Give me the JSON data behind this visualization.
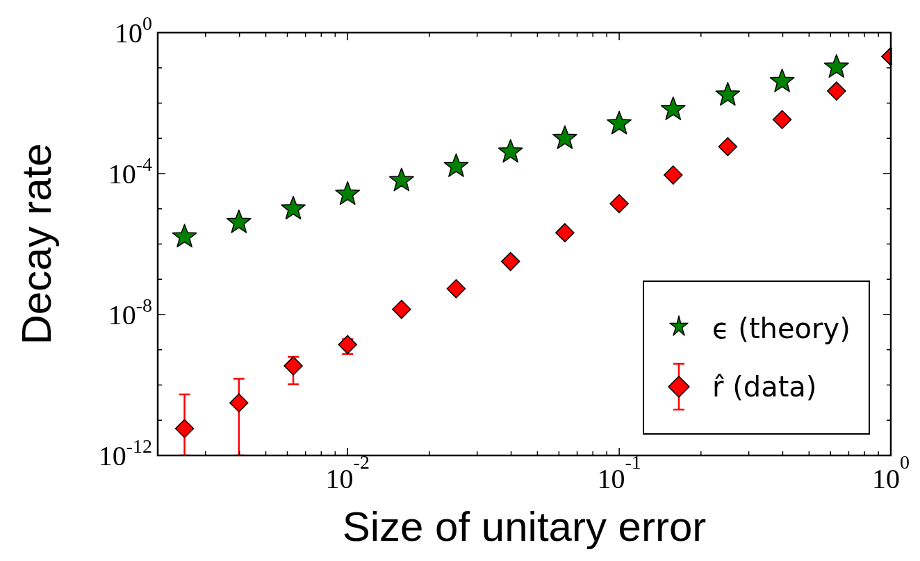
{
  "chart_data": {
    "type": "scatter",
    "xlabel": "Size of unitary error",
    "ylabel": "Decay rate",
    "log": "xy",
    "grid": false,
    "legend": "bottom right",
    "x": [
      0.00251,
      0.00398,
      0.00631,
      0.01,
      0.0158,
      0.0251,
      0.0398,
      0.0631,
      0.1,
      0.158,
      0.251,
      0.398,
      0.631,
      1
    ],
    "series": [
      {
        "name": "ϵ (theory)",
        "color": "#008000",
        "marker": "star",
        "values": [
          1.6e-06,
          4.1e-06,
          1e-05,
          2.6e-05,
          6.3e-05,
          0.00016,
          0.00041,
          0.001,
          0.0026,
          0.0066,
          0.017,
          0.041,
          0.105,
          null
        ]
      },
      {
        "name": "r̂ (data)",
        "color": "#ff0000",
        "marker": "diamond",
        "values": [
          5.8e-12,
          3.1e-11,
          3.5e-10,
          1.4e-09,
          1.4e-08,
          5.4e-08,
          3.2e-07,
          2.1e-06,
          1.4e-05,
          9.1e-05,
          0.00058,
          0.0034,
          0.022,
          0.21
        ],
        "errors": [
          [
            1e-12,
            5.4e-11
          ],
          [
            1e-12,
            1.5e-10
          ],
          [
            1.05e-10,
            6.3e-10
          ],
          [
            7.6e-10,
            2e-09
          ],
          null,
          null,
          null,
          null,
          null,
          null,
          null,
          null,
          null,
          null
        ]
      }
    ],
    "xlim": [
      0.002,
      1
    ],
    "xticks": [
      {
        "value": 0.002,
        "label": null
      },
      {
        "value": 0.003,
        "label": null
      },
      {
        "value": 0.004,
        "label": null
      },
      {
        "value": 0.005,
        "label": null
      },
      {
        "value": 0.006,
        "label": null
      },
      {
        "value": 0.007,
        "label": null
      },
      {
        "value": 0.008,
        "label": null
      },
      {
        "value": 0.009,
        "label": null
      },
      {
        "value": 0.01,
        "label": "10$^{-2}$"
      },
      {
        "value": 0.02,
        "label": null
      },
      {
        "value": 0.03,
        "label": null
      },
      {
        "value": 0.04,
        "label": null
      },
      {
        "value": 0.05,
        "label": null
      },
      {
        "value": 0.06,
        "label": null
      },
      {
        "value": 0.07,
        "label": null
      },
      {
        "value": 0.08,
        "label": null
      },
      {
        "value": 0.09,
        "label": null
      },
      {
        "value": 0.1,
        "label": "10$^{-1}$"
      },
      {
        "value": 0.2,
        "label": null
      },
      {
        "value": 0.3,
        "label": null
      },
      {
        "value": 0.4,
        "label": null
      },
      {
        "value": 0.5,
        "label": null
      },
      {
        "value": 0.6,
        "label": null
      },
      {
        "value": 0.7,
        "label": null
      },
      {
        "value": 0.8,
        "label": null
      },
      {
        "value": 0.9,
        "label": null
      },
      {
        "value": 1,
        "label": "10$^{0}$"
      }
    ],
    "ylim": [
      1e-12,
      1
    ],
    "yticks": [
      {
        "value": 1e-12,
        "label": "10$^{-12}$"
      },
      {
        "value": 1e-11,
        "label": null
      },
      {
        "value": 1e-10,
        "label": null
      },
      {
        "value": 1e-09,
        "label": null
      },
      {
        "value": 1e-08,
        "label": "10$^{-8}$"
      },
      {
        "value": 1e-07,
        "label": null
      },
      {
        "value": 1e-06,
        "label": null
      },
      {
        "value": 1e-05,
        "label": null
      },
      {
        "value": 0.0001,
        "label": "10$^{-4}$"
      },
      {
        "value": 0.001,
        "label": null
      },
      {
        "value": 0.01,
        "label": null
      },
      {
        "value": 0.1,
        "label": null
      },
      {
        "value": 1,
        "label": "10$^{0}$"
      }
    ]
  }
}
